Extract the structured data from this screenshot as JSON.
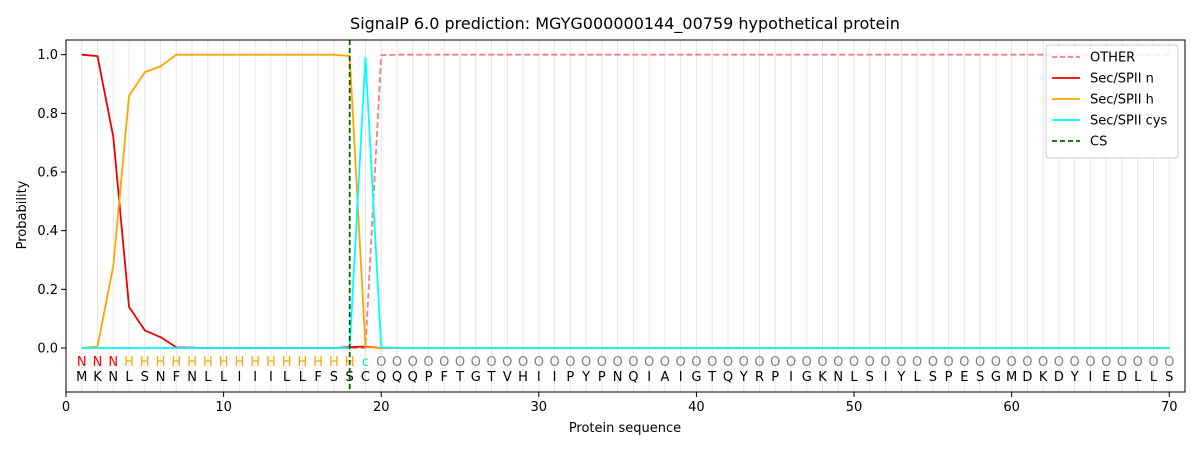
{
  "chart_data": {
    "type": "line",
    "title": "SignalP 6.0 prediction: MGYG000000144_00759 hypothetical protein",
    "xlabel": "Protein sequence",
    "ylabel": "Probability",
    "xlim": [
      0,
      71
    ],
    "ylim": [
      -0.15,
      1.05
    ],
    "x_ticks": [
      0,
      10,
      20,
      30,
      40,
      50,
      60,
      70
    ],
    "y_ticks": [
      0.0,
      0.2,
      0.4,
      0.6,
      0.8,
      1.0
    ],
    "grid": "vertical lines at each residue",
    "legend_position": "top-right",
    "sequence": [
      "M",
      "K",
      "N",
      "L",
      "S",
      "N",
      "F",
      "N",
      "L",
      "L",
      "I",
      "I",
      "I",
      "L",
      "L",
      "F",
      "S",
      "S",
      "C",
      "Q",
      "Q",
      "Q",
      "P",
      "F",
      "T",
      "G",
      "T",
      "V",
      "H",
      "I",
      "I",
      "P",
      "Y",
      "P",
      "N",
      "Q",
      "I",
      "A",
      "I",
      "G",
      "T",
      "Q",
      "Y",
      "R",
      "P",
      "I",
      "G",
      "K",
      "N",
      "L",
      "S",
      "I",
      "Y",
      "L",
      "S",
      "P",
      "E",
      "S",
      "G",
      "M",
      "D",
      "K",
      "D",
      "Y",
      "I",
      "E",
      "D",
      "L",
      "L",
      "S"
    ],
    "region_labels": [
      "N",
      "N",
      "N",
      "H",
      "H",
      "H",
      "H",
      "H",
      "H",
      "H",
      "H",
      "H",
      "H",
      "H",
      "H",
      "H",
      "H",
      "H",
      "c",
      "O",
      "O",
      "O",
      "O",
      "O",
      "O",
      "O",
      "O",
      "O",
      "O",
      "O",
      "O",
      "O",
      "O",
      "O",
      "O",
      "O",
      "O",
      "O",
      "O",
      "O",
      "O",
      "O",
      "O",
      "O",
      "O",
      "O",
      "O",
      "O",
      "O",
      "O",
      "O",
      "O",
      "O",
      "O",
      "O",
      "O",
      "O",
      "O",
      "O",
      "O",
      "O",
      "O",
      "O",
      "O",
      "O",
      "O",
      "O",
      "O",
      "O",
      "O"
    ],
    "region_colors": {
      "N": "#ff0000",
      "H": "#ffa500",
      "c": "#00e5e5",
      "O": "#808080"
    },
    "series": [
      {
        "name": "OTHER",
        "color": "#f08080",
        "dash": "dashed",
        "values": [
          0,
          0,
          0,
          0,
          0,
          0,
          0,
          0,
          0,
          0,
          0,
          0,
          0,
          0,
          0,
          0,
          0,
          0,
          0,
          0.998,
          1,
          1,
          1,
          1,
          1,
          1,
          1,
          1,
          1,
          1,
          1,
          1,
          1,
          1,
          1,
          1,
          1,
          1,
          1,
          1,
          1,
          1,
          1,
          1,
          1,
          1,
          1,
          1,
          1,
          1,
          1,
          1,
          1,
          1,
          1,
          1,
          1,
          1,
          1,
          1,
          1,
          1,
          1,
          1,
          1,
          1,
          1,
          1,
          1,
          1
        ]
      },
      {
        "name": "Sec/SPII n",
        "color": "#ee0000",
        "dash": "solid",
        "values": [
          1.0,
          0.995,
          0.72,
          0.14,
          0.06,
          0.037,
          0.002,
          0.001,
          0,
          0,
          0,
          0,
          0,
          0,
          0,
          0,
          0,
          0.003,
          0.005,
          0,
          0,
          0,
          0,
          0,
          0,
          0,
          0,
          0,
          0,
          0,
          0,
          0,
          0,
          0,
          0,
          0,
          0,
          0,
          0,
          0,
          0,
          0,
          0,
          0,
          0,
          0,
          0,
          0,
          0,
          0,
          0,
          0,
          0,
          0,
          0,
          0,
          0,
          0,
          0,
          0,
          0,
          0,
          0,
          0,
          0,
          0,
          0,
          0,
          0,
          0
        ]
      },
      {
        "name": "Sec/SPII h",
        "color": "#ffa500",
        "dash": "solid",
        "values": [
          0,
          0.005,
          0.28,
          0.86,
          0.94,
          0.96,
          1.0,
          1.0,
          1.0,
          1.0,
          1.0,
          1.0,
          1.0,
          1.0,
          1.0,
          1.0,
          1.0,
          0.995,
          0.003,
          0,
          0,
          0,
          0,
          0,
          0,
          0,
          0,
          0,
          0,
          0,
          0,
          0,
          0,
          0,
          0,
          0,
          0,
          0,
          0,
          0,
          0,
          0,
          0,
          0,
          0,
          0,
          0,
          0,
          0,
          0,
          0,
          0,
          0,
          0,
          0,
          0,
          0,
          0,
          0,
          0,
          0,
          0,
          0,
          0,
          0,
          0,
          0,
          0,
          0,
          0
        ]
      },
      {
        "name": "Sec/SPII cys",
        "color": "#00ffff",
        "dash": "solid",
        "values": [
          0,
          0,
          0,
          0,
          0,
          0,
          0,
          0,
          0,
          0,
          0,
          0,
          0,
          0,
          0,
          0,
          0,
          0,
          0.99,
          0.002,
          0,
          0,
          0,
          0,
          0,
          0,
          0,
          0,
          0,
          0,
          0,
          0,
          0,
          0,
          0,
          0,
          0,
          0,
          0,
          0,
          0,
          0,
          0,
          0,
          0,
          0,
          0,
          0,
          0,
          0,
          0,
          0,
          0,
          0,
          0,
          0,
          0,
          0,
          0,
          0,
          0,
          0,
          0,
          0,
          0,
          0,
          0,
          0,
          0,
          0
        ]
      }
    ],
    "cleavage_site": {
      "name": "CS",
      "x": 18,
      "color": "#006400",
      "dash": "dashed"
    }
  }
}
